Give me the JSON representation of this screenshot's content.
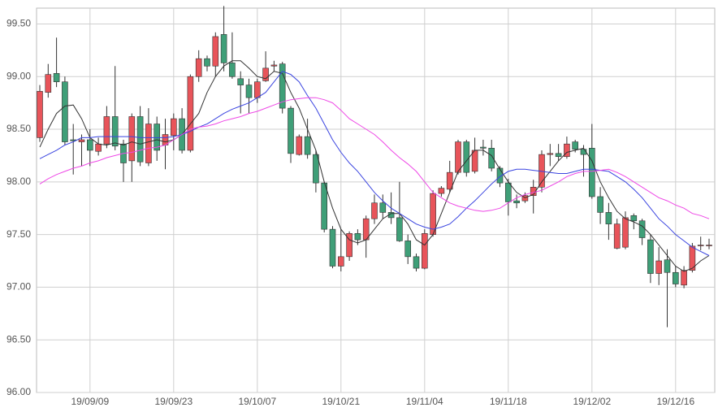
{
  "chart_data": {
    "type": "candlestick",
    "categories": [
      null,
      null,
      null,
      null,
      null,
      null,
      "19/09/09",
      null,
      null,
      null,
      null,
      null,
      null,
      null,
      null,
      null,
      "19/09/23",
      null,
      null,
      null,
      null,
      null,
      null,
      null,
      null,
      null,
      "19/10/07",
      null,
      null,
      null,
      null,
      null,
      null,
      null,
      null,
      null,
      "19/10/21",
      null,
      null,
      null,
      null,
      null,
      null,
      null,
      null,
      null,
      "19/11/04",
      null,
      null,
      null,
      null,
      null,
      null,
      null,
      null,
      null,
      "19/11/18",
      null,
      null,
      null,
      null,
      null,
      null,
      null,
      null,
      null,
      "19/12/02",
      null,
      null,
      null,
      null,
      null,
      null,
      null,
      null,
      null,
      "19/12/16",
      null,
      null,
      null,
      null
    ],
    "open": [
      98.42,
      98.85,
      99.03,
      98.95,
      98.4,
      98.38,
      98.4,
      98.29,
      98.36,
      98.62,
      98.36,
      98.2,
      98.62,
      98.18,
      98.55,
      98.35,
      98.44,
      98.6,
      98.3,
      99.0,
      99.17,
      99.1,
      99.4,
      99.13,
      98.98,
      98.92,
      98.8,
      98.96,
      99.1,
      99.12,
      98.7,
      98.26,
      98.43,
      98.26,
      97.99,
      97.55,
      97.2,
      97.29,
      97.51,
      97.45,
      97.65,
      97.8,
      97.71,
      97.66,
      97.44,
      97.29,
      97.18,
      97.5,
      97.89,
      97.93,
      98.09,
      98.38,
      98.1,
      98.33,
      98.32,
      98.13,
      97.99,
      97.82,
      97.82,
      97.87,
      97.95,
      98.26,
      98.27,
      98.24,
      98.38,
      98.31,
      98.32,
      97.86,
      97.71,
      97.37,
      97.38,
      97.68,
      97.63,
      97.45,
      97.13,
      97.26,
      97.14,
      97.02,
      97.16,
      97.4,
      97.4
    ],
    "high": [
      98.92,
      99.12,
      99.37,
      99.0,
      98.55,
      98.45,
      98.5,
      98.42,
      98.72,
      99.1,
      98.4,
      98.65,
      98.72,
      98.7,
      98.62,
      98.6,
      98.65,
      98.7,
      99.02,
      99.25,
      99.2,
      99.42,
      99.67,
      99.42,
      99.05,
      98.98,
      98.98,
      99.24,
      99.15,
      99.14,
      98.72,
      98.45,
      98.6,
      98.3,
      98.0,
      97.58,
      97.55,
      97.53,
      97.55,
      97.68,
      97.88,
      97.88,
      97.9,
      98.0,
      97.5,
      97.32,
      97.55,
      97.92,
      97.96,
      98.2,
      98.4,
      98.4,
      98.42,
      98.4,
      98.4,
      98.15,
      98.03,
      97.88,
      97.9,
      98.02,
      98.3,
      98.36,
      98.36,
      98.43,
      98.4,
      98.35,
      98.55,
      97.95,
      97.8,
      97.65,
      97.72,
      97.7,
      97.65,
      97.5,
      97.38,
      97.36,
      97.2,
      97.2,
      97.42,
      97.48,
      97.46
    ],
    "low": [
      98.38,
      98.8,
      98.9,
      98.35,
      98.07,
      98.15,
      98.15,
      98.25,
      98.32,
      98.3,
      98.0,
      98.0,
      98.15,
      98.15,
      98.2,
      98.12,
      98.3,
      98.27,
      98.28,
      98.95,
      99.05,
      99.0,
      99.05,
      98.98,
      98.65,
      98.65,
      98.75,
      98.95,
      99.05,
      98.65,
      98.18,
      98.25,
      98.22,
      97.9,
      97.52,
      97.18,
      97.15,
      97.25,
      97.4,
      97.28,
      97.6,
      97.65,
      97.6,
      97.43,
      97.22,
      97.15,
      97.17,
      97.48,
      97.86,
      97.9,
      98.07,
      98.05,
      98.08,
      98.25,
      98.1,
      97.95,
      97.68,
      97.75,
      97.8,
      97.7,
      97.9,
      98.15,
      98.2,
      98.22,
      98.28,
      98.05,
      97.84,
      97.6,
      97.45,
      97.36,
      97.36,
      97.55,
      97.4,
      97.04,
      97.02,
      96.62,
      97.0,
      96.99,
      97.14,
      97.35,
      97.36
    ],
    "close": [
      98.86,
      99.02,
      98.95,
      98.38,
      98.39,
      98.4,
      98.3,
      98.36,
      98.62,
      98.34,
      98.18,
      98.62,
      98.19,
      98.55,
      98.3,
      98.45,
      98.6,
      98.3,
      99.0,
      99.17,
      99.1,
      99.38,
      99.13,
      99.0,
      98.92,
      98.8,
      98.95,
      99.08,
      99.11,
      98.7,
      98.27,
      98.43,
      98.26,
      97.99,
      97.55,
      97.2,
      97.29,
      97.51,
      97.45,
      97.65,
      97.8,
      97.71,
      97.66,
      97.44,
      97.29,
      97.18,
      97.51,
      97.89,
      97.94,
      98.09,
      98.38,
      98.09,
      98.3,
      98.32,
      98.13,
      97.99,
      97.81,
      97.8,
      97.87,
      97.95,
      98.26,
      98.27,
      98.24,
      98.36,
      98.31,
      98.26,
      97.86,
      97.71,
      97.6,
      97.6,
      97.66,
      97.63,
      97.47,
      97.13,
      97.25,
      97.14,
      97.03,
      97.16,
      97.39,
      97.4,
      97.4
    ],
    "up_color": "#e8545a",
    "down_color": "#3f9f78",
    "lines": [
      {
        "color": "#333333",
        "values": [
          98.33,
          98.5,
          98.65,
          98.72,
          98.73,
          98.6,
          98.42,
          98.36,
          98.35,
          98.37,
          98.35,
          98.38,
          98.36,
          98.38,
          98.4,
          98.38,
          98.4,
          98.45,
          98.55,
          98.65,
          98.85,
          99.0,
          99.1,
          99.15,
          99.15,
          99.08,
          99.0,
          98.98,
          99.05,
          99.03,
          98.85,
          98.7,
          98.5,
          98.3,
          98.0,
          97.75,
          97.55,
          97.45,
          97.42,
          97.45,
          97.55,
          97.65,
          97.7,
          97.7,
          97.6,
          97.45,
          97.4,
          97.5,
          97.7,
          97.9,
          98.1,
          98.2,
          98.3,
          98.3,
          98.25,
          98.12,
          98.0,
          97.9,
          97.85,
          97.88,
          98.0,
          98.1,
          98.2,
          98.28,
          98.3,
          98.32,
          98.2,
          98.0,
          97.85,
          97.72,
          97.65,
          97.62,
          97.58,
          97.5,
          97.4,
          97.3,
          97.2,
          97.15,
          97.18,
          97.25,
          97.3
        ]
      },
      {
        "color": "#3b45e0",
        "values": [
          98.22,
          98.26,
          98.3,
          98.35,
          98.38,
          98.42,
          98.42,
          98.43,
          98.43,
          98.43,
          98.43,
          98.43,
          98.42,
          98.42,
          98.42,
          98.42,
          98.43,
          98.45,
          98.48,
          98.52,
          98.55,
          98.6,
          98.65,
          98.69,
          98.72,
          98.75,
          98.8,
          98.85,
          98.95,
          99.05,
          99.02,
          98.95,
          98.82,
          98.7,
          98.55,
          98.4,
          98.28,
          98.18,
          98.1,
          98.0,
          97.9,
          97.82,
          97.75,
          97.7,
          97.65,
          97.6,
          97.57,
          97.55,
          97.57,
          97.6,
          97.67,
          97.75,
          97.82,
          97.9,
          97.98,
          98.05,
          98.1,
          98.12,
          98.12,
          98.11,
          98.1,
          98.09,
          98.08,
          98.08,
          98.1,
          98.12,
          98.12,
          98.11,
          98.1,
          98.05,
          98.0,
          97.93,
          97.85,
          97.75,
          97.65,
          97.58,
          97.5,
          97.44,
          97.38,
          97.34,
          97.3
        ]
      },
      {
        "color": "#ee48e6",
        "values": [
          97.98,
          98.03,
          98.07,
          98.1,
          98.13,
          98.15,
          98.18,
          98.2,
          98.23,
          98.25,
          98.27,
          98.28,
          98.3,
          98.32,
          98.33,
          98.35,
          98.4,
          98.45,
          98.5,
          98.52,
          98.53,
          98.55,
          98.58,
          98.6,
          98.62,
          98.65,
          98.67,
          98.7,
          98.73,
          98.76,
          98.78,
          98.79,
          98.8,
          98.8,
          98.78,
          98.75,
          98.68,
          98.6,
          98.55,
          98.5,
          98.45,
          98.38,
          98.3,
          98.23,
          98.17,
          98.1,
          98.0,
          97.9,
          97.85,
          97.8,
          97.77,
          97.75,
          97.73,
          97.72,
          97.73,
          97.75,
          97.8,
          97.85,
          97.88,
          97.9,
          97.92,
          97.96,
          98.0,
          98.05,
          98.08,
          98.1,
          98.1,
          98.11,
          98.12,
          98.09,
          98.05,
          98.0,
          97.95,
          97.9,
          97.85,
          97.82,
          97.78,
          97.75,
          97.7,
          97.68,
          97.65
        ]
      }
    ],
    "ylim": [
      96.0,
      99.65
    ],
    "yticks": [
      {
        "value": 96,
        "label": "96.00"
      },
      {
        "value": 96.5,
        "label": "96.50"
      },
      {
        "value": 97,
        "label": "97.00"
      },
      {
        "value": 97.5,
        "label": "97.50"
      },
      {
        "value": 98,
        "label": "98.00"
      },
      {
        "value": 98.5,
        "label": "98.50"
      },
      {
        "value": 99,
        "label": "99.00"
      },
      {
        "value": 99.5,
        "label": "99.50"
      }
    ],
    "grid": true
  }
}
